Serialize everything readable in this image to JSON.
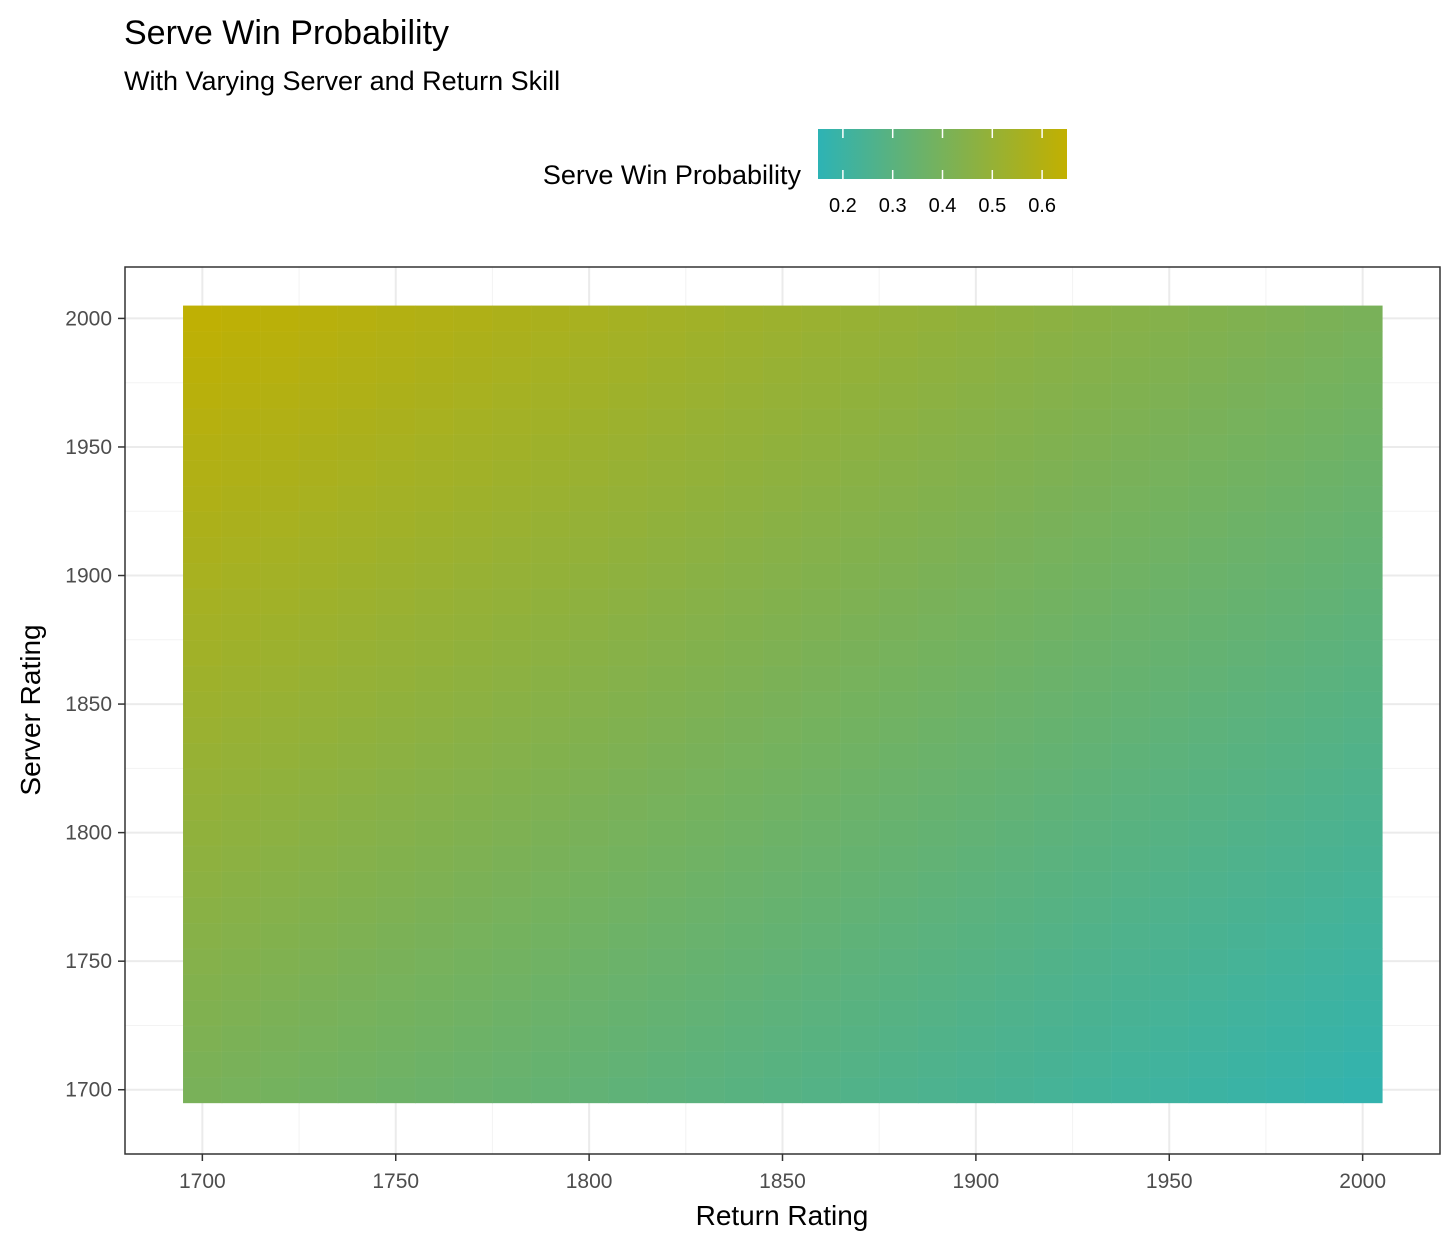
{
  "chart_data": {
    "type": "heatmap",
    "title": "Serve Win Probability",
    "subtitle": "With Varying Server and Return Skill",
    "xlabel": "Return Rating",
    "ylabel": "Server Rating",
    "x_range": [
      1695,
      2005
    ],
    "y_range": [
      1695,
      2005
    ],
    "xlim": [
      1680,
      2020
    ],
    "ylim": [
      1675,
      2020
    ],
    "x_ticks": [
      "1700",
      "1750",
      "1800",
      "1850",
      "1900",
      "1950",
      "2000"
    ],
    "y_ticks": [
      "1700",
      "1750",
      "1800",
      "1850",
      "1900",
      "1950",
      "2000"
    ],
    "grid": true,
    "cell_step": 10,
    "value_model": "Estimated serve win probability over a 10-point grid of return and server ratings; ~0.64 at (return 1700, server 2000), ~0.17 at (return 2000, server 1700)",
    "corner_values": {
      "return_1700_server_2000": 0.64,
      "return_2000_server_2000": 0.41,
      "return_1700_server_1700": 0.41,
      "return_2000_server_1700": 0.17
    },
    "legend": {
      "title": "Serve Win Probability",
      "position": "top",
      "min": 0.15,
      "max": 0.65,
      "ticks": [
        "0.2",
        "0.3",
        "0.4",
        "0.5",
        "0.6"
      ],
      "low_color": "#2db3b5",
      "high_color": "#c2b000"
    }
  }
}
